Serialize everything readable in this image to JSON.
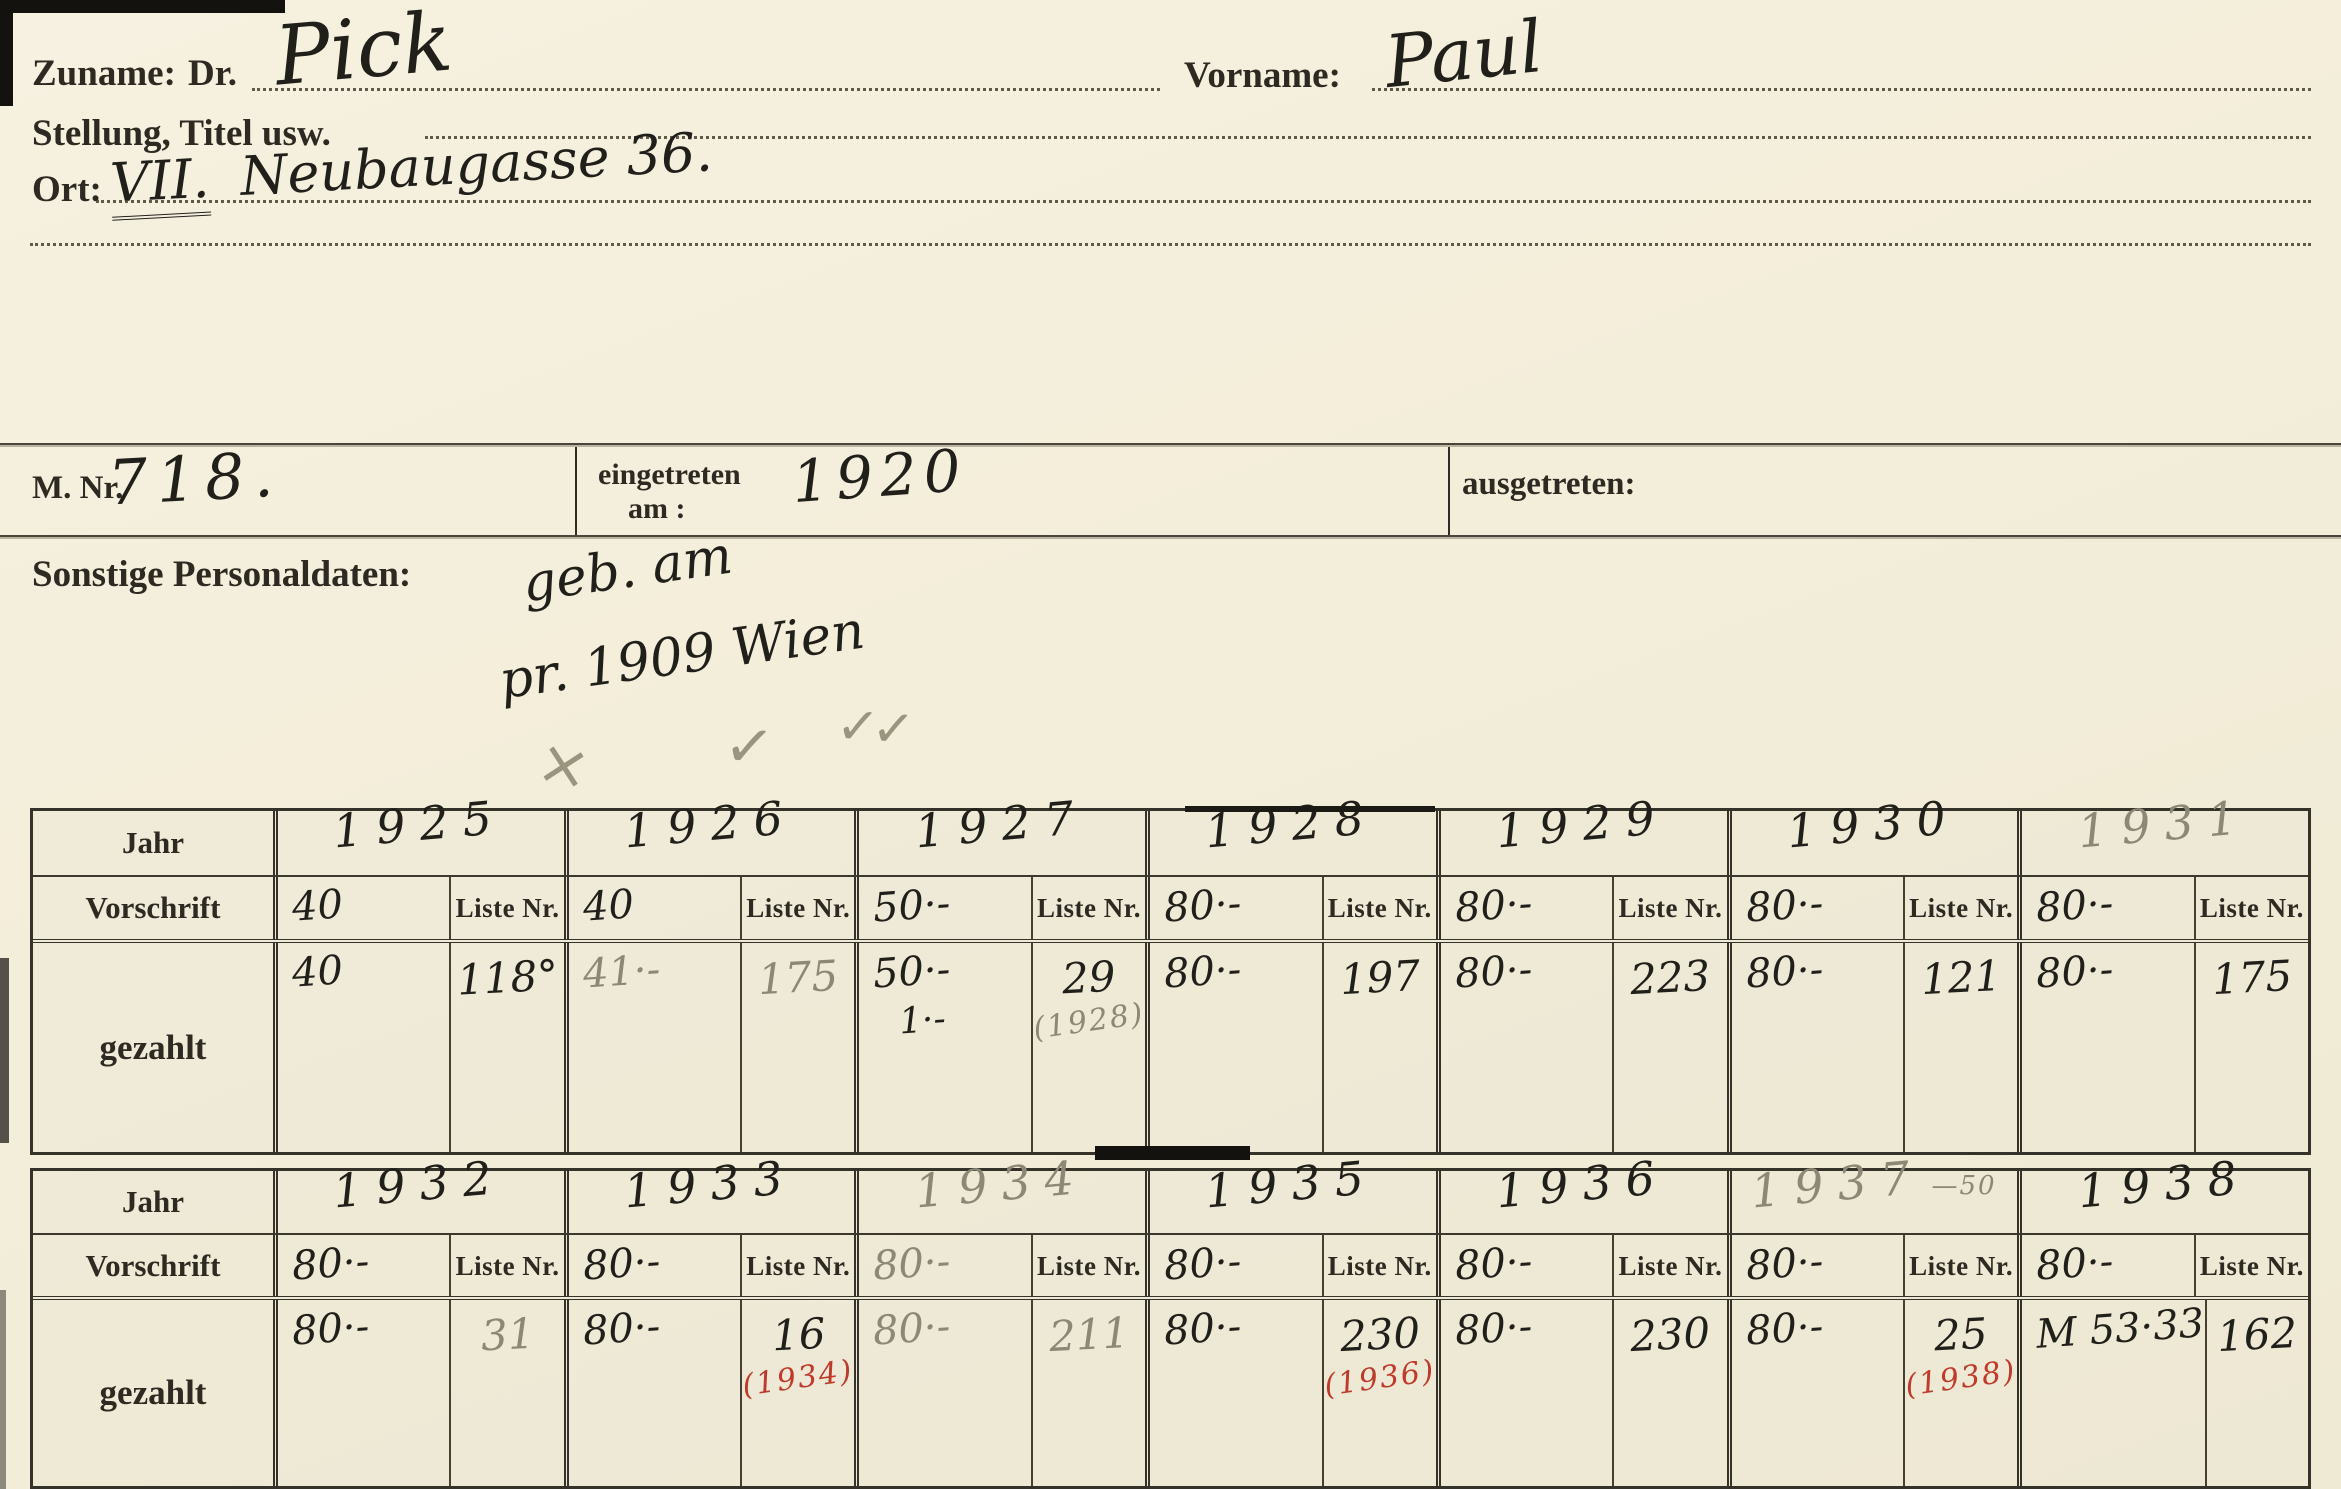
{
  "header": {
    "zuname_label": "Zuname:",
    "dr_label": "Dr.",
    "zuname_value": "Pick",
    "vorname_label": "Vorname:",
    "vorname_value": "Paul",
    "stellung_label": "Stellung, Titel usw.",
    "ort_label": "Ort:",
    "ort_district": "VII.",
    "ort_street": "Neubaugasse 36."
  },
  "member": {
    "mnr_label": "M. Nr.",
    "mnr_value": "718.",
    "eingetreten_label_line1": "eingetreten",
    "eingetreten_label_line2": "am :",
    "eingetreten_value": "1920",
    "ausgetreten_label": "ausgetreten:",
    "personal_label": "Sonstige Personaldaten:",
    "personal_value_line1": "geb. am",
    "personal_value_line2": "pr. 1909 Wien"
  },
  "annotations": {
    "cross": "×",
    "check": "✓",
    "double_check": "✓✓"
  },
  "table_labels": {
    "jahr": "Jahr",
    "vorschrift": "Vorschrift",
    "liste": "Liste Nr.",
    "gezahlt": "gezahlt"
  },
  "tables": [
    {
      "groups": [
        {
          "year": "1925",
          "year_style": "ink",
          "year_suffix": "",
          "vorschrift": "40",
          "vorschrift_style": "ink",
          "paid": "40",
          "paid2": "",
          "paid_style": "ink",
          "liste": "118°",
          "liste_style": "ink",
          "note": "",
          "note_style": ""
        },
        {
          "year": "1926",
          "year_style": "ink",
          "year_suffix": "",
          "vorschrift": "40",
          "vorschrift_style": "ink",
          "paid": "41·-",
          "paid2": "",
          "paid_style": "pencil",
          "liste": "175",
          "liste_style": "pencil",
          "note": "",
          "note_style": ""
        },
        {
          "year": "1927",
          "year_style": "ink",
          "year_suffix": "",
          "vorschrift": "50·-",
          "vorschrift_style": "ink",
          "paid": "50·-",
          "paid2": "1·-",
          "paid_style": "ink",
          "liste": "29",
          "liste_style": "ink",
          "note": "(1928)",
          "note_style": "pencil"
        },
        {
          "year": "1928",
          "year_style": "ink",
          "year_suffix": "",
          "vorschrift": "80·-",
          "vorschrift_style": "ink",
          "paid": "80·-",
          "paid2": "",
          "paid_style": "ink",
          "liste": "197",
          "liste_style": "ink",
          "note": "",
          "note_style": ""
        },
        {
          "year": "1929",
          "year_style": "ink",
          "year_suffix": "",
          "vorschrift": "80·-",
          "vorschrift_style": "ink",
          "paid": "80·-",
          "paid2": "",
          "paid_style": "ink",
          "liste": "223",
          "liste_style": "ink",
          "note": "",
          "note_style": ""
        },
        {
          "year": "1930",
          "year_style": "ink",
          "year_suffix": "",
          "vorschrift": "80·-",
          "vorschrift_style": "ink",
          "paid": "80·-",
          "paid2": "",
          "paid_style": "ink",
          "liste": "121",
          "liste_style": "ink",
          "note": "",
          "note_style": ""
        },
        {
          "year": "1931",
          "year_style": "pencil",
          "year_suffix": "",
          "vorschrift": "80·-",
          "vorschrift_style": "ink",
          "paid": "80·-",
          "paid2": "",
          "paid_style": "ink",
          "liste": "175",
          "liste_style": "ink",
          "note": "",
          "note_style": ""
        }
      ]
    },
    {
      "groups": [
        {
          "year": "1932",
          "year_style": "ink",
          "year_suffix": "",
          "vorschrift": "80·-",
          "vorschrift_style": "ink",
          "paid": "80·-",
          "paid2": "",
          "paid_style": "ink",
          "liste": "31",
          "liste_style": "pencil",
          "note": "",
          "note_style": ""
        },
        {
          "year": "1933",
          "year_style": "ink",
          "year_suffix": "",
          "vorschrift": "80·-",
          "vorschrift_style": "ink",
          "paid": "80·-",
          "paid2": "",
          "paid_style": "ink",
          "liste": "16",
          "liste_style": "ink",
          "note": "(1934)",
          "note_style": "red"
        },
        {
          "year": "1934",
          "year_style": "pencil",
          "year_suffix": "",
          "vorschrift": "80·-",
          "vorschrift_style": "pencil",
          "paid": "80·-",
          "paid2": "",
          "paid_style": "pencil",
          "liste": "211",
          "liste_style": "pencil",
          "note": "",
          "note_style": ""
        },
        {
          "year": "1935",
          "year_style": "ink",
          "year_suffix": "",
          "vorschrift": "80·-",
          "vorschrift_style": "ink",
          "paid": "80·-",
          "paid2": "",
          "paid_style": "ink",
          "liste": "230",
          "liste_style": "ink",
          "note": "(1936)",
          "note_style": "red"
        },
        {
          "year": "1936",
          "year_style": "ink",
          "year_suffix": "",
          "vorschrift": "80·-",
          "vorschrift_style": "ink",
          "paid": "80·-",
          "paid2": "",
          "paid_style": "ink",
          "liste": "230",
          "liste_style": "ink",
          "note": "",
          "note_style": ""
        },
        {
          "year": "1937",
          "year_style": "pencil",
          "year_suffix": "—50",
          "vorschrift": "80·-",
          "vorschrift_style": "ink",
          "paid": "80·-",
          "paid2": "",
          "paid_style": "ink",
          "liste": "25",
          "liste_style": "ink",
          "note": "(1938)",
          "note_style": "red"
        },
        {
          "year": "1938",
          "year_style": "ink",
          "year_suffix": "",
          "vorschrift": "80·-",
          "vorschrift_style": "ink",
          "paid": "M 53·33",
          "paid2": "",
          "paid_style": "ink",
          "liste": "162",
          "liste_style": "ink",
          "note": "",
          "note_style": ""
        }
      ]
    }
  ],
  "colors": {
    "paper": "#f3eeda",
    "ink": "#211f1a",
    "pencil": "#8d8876",
    "red": "#bf3a2a",
    "print": "#2e2a22",
    "rule": "#3c382c"
  }
}
